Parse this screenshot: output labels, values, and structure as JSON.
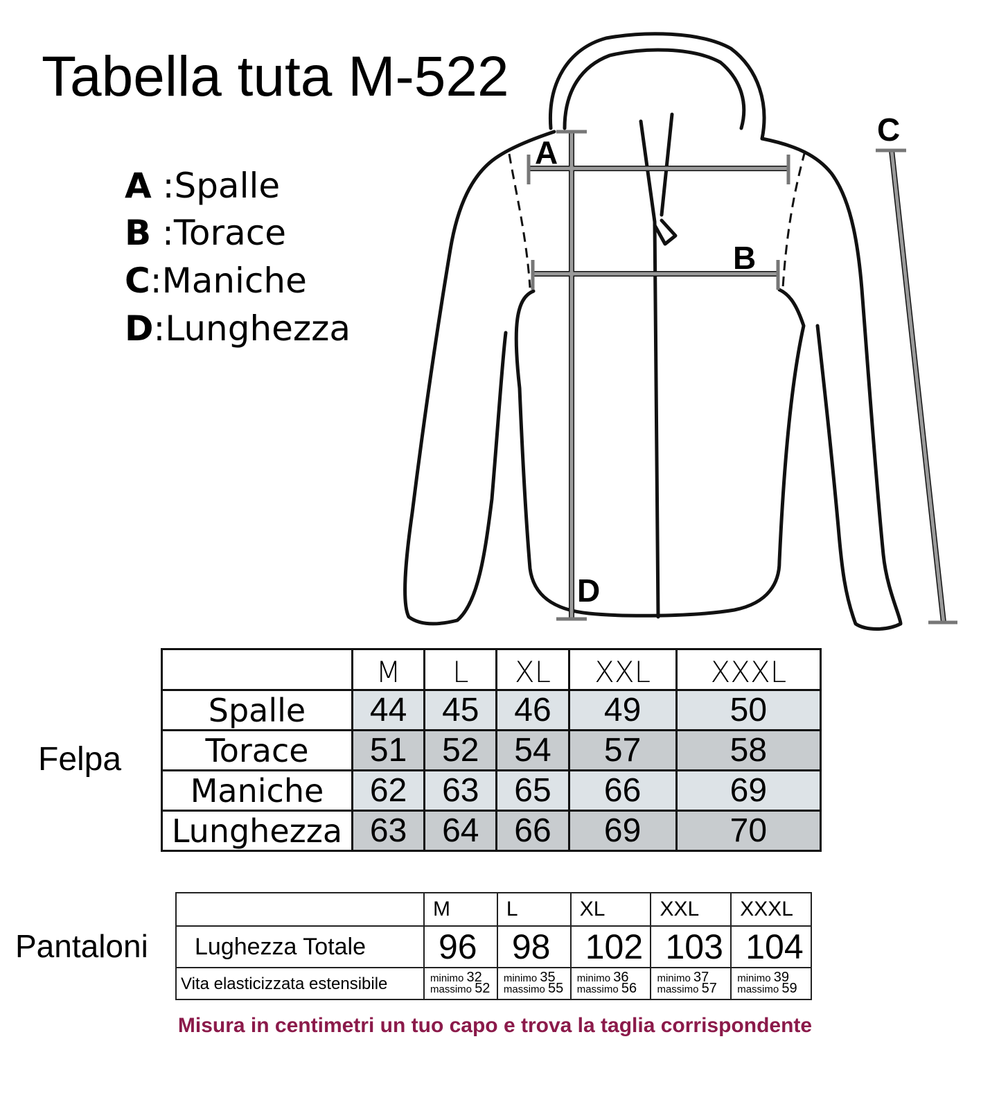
{
  "title": "Tabella tuta M-522",
  "legend": [
    {
      "key": "A",
      "sep": " :",
      "label": "Spalle"
    },
    {
      "key": "B",
      "sep": " :",
      "label": "Torace"
    },
    {
      "key": "C",
      "sep": ":",
      "label": "Maniche"
    },
    {
      "key": "D",
      "sep": ":",
      "label": "Lunghezza"
    }
  ],
  "diagram_labels": {
    "a": "A",
    "b": "B",
    "c": "C",
    "d": "D"
  },
  "felpa": {
    "label": "Felpa",
    "sizes": [
      "M",
      "L",
      "XL",
      "XXL",
      "XXXL"
    ],
    "rows": [
      {
        "label": "Spalle",
        "values": [
          "44",
          "45",
          "46",
          "49",
          "50"
        ]
      },
      {
        "label": "Torace",
        "values": [
          "51",
          "52",
          "54",
          "57",
          "58"
        ]
      },
      {
        "label": "Maniche",
        "values": [
          "62",
          "63",
          "65",
          "66",
          "69"
        ]
      },
      {
        "label": "Lunghezza",
        "values": [
          "63",
          "64",
          "66",
          "69",
          "70"
        ]
      }
    ]
  },
  "pantaloni": {
    "label": "Pantaloni",
    "sizes": [
      "M",
      "L",
      "XL",
      "XXL",
      "XXXL"
    ],
    "length_label": "Lughezza Totale",
    "length_values": [
      "96",
      "98",
      "102",
      "103",
      "104"
    ],
    "waist_label": "Vita elasticizzata estensibile",
    "min_word": "minimo",
    "max_word": "massimo",
    "waist_min": [
      "32",
      "35",
      "36",
      "37",
      "39"
    ],
    "waist_max": [
      "52",
      "55",
      "56",
      "57",
      "59"
    ]
  },
  "note": "Misura in centimetri un tuo capo e trova la taglia corrispondente",
  "colors": {
    "row_light": "#dde3e7",
    "row_dark": "#c8cccf",
    "note": "#8b1a4a",
    "measure_bar": "#9a9a9a"
  }
}
